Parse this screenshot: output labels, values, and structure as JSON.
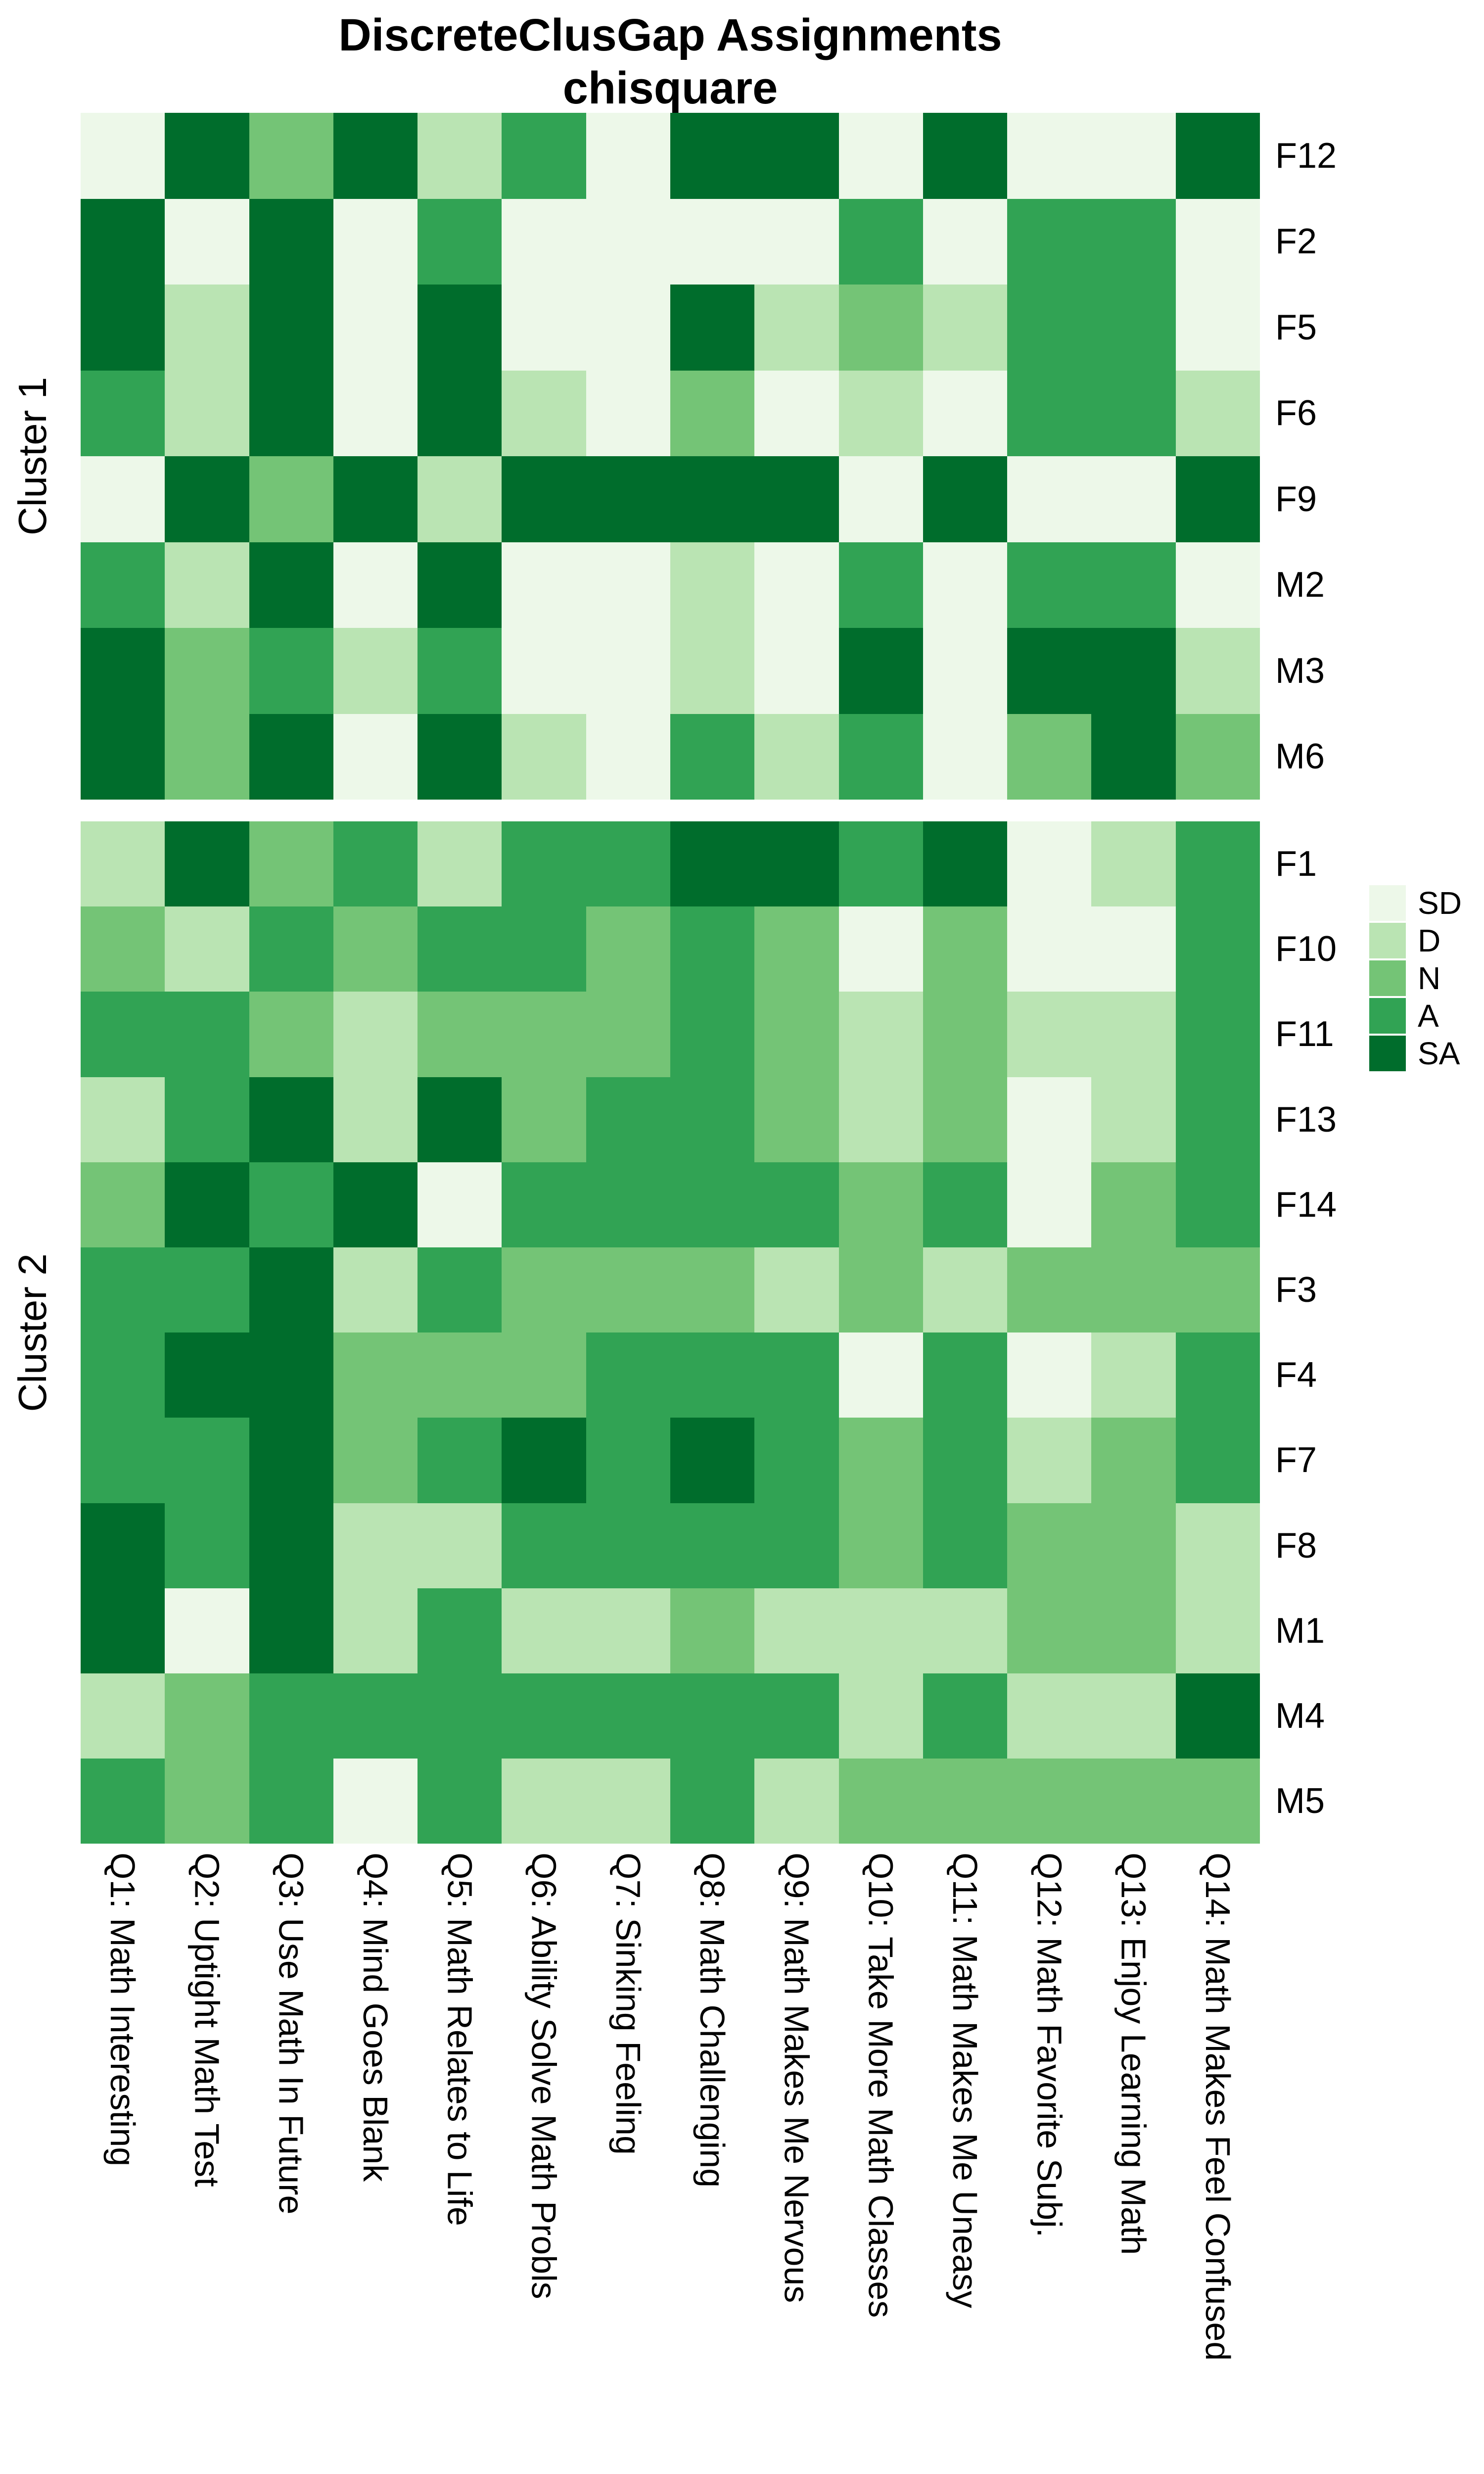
{
  "title": {
    "line1": "DiscreteClusGap Assignments",
    "line2": "chisquare"
  },
  "legend": {
    "entries": [
      {
        "label": "SD",
        "color": "#edf8e9"
      },
      {
        "label": "D",
        "color": "#bae4b3"
      },
      {
        "label": "N",
        "color": "#74c476"
      },
      {
        "label": "A",
        "color": "#31a354"
      },
      {
        "label": "SA",
        "color": "#006d2c"
      }
    ]
  },
  "chart_data": {
    "type": "heatmap",
    "title": "DiscreteClusGap Assignments",
    "subtitle": "chisquare",
    "value_scale": [
      "SD",
      "D",
      "N",
      "A",
      "SA"
    ],
    "palette": {
      "SD": "#edf8e9",
      "D": "#bae4b3",
      "N": "#74c476",
      "A": "#31a354",
      "SA": "#006d2c"
    },
    "legend_position": "right",
    "grid": "off",
    "columns": [
      "Q1: Math Interesting",
      "Q2: Uptight Math Test",
      "Q3: Use Math In Future",
      "Q4: Mind Goes Blank",
      "Q5: Math Relates to Life",
      "Q6: Ability Solve Math Probls",
      "Q7: Sinking Feeling",
      "Q8: Math Challenging",
      "Q9: Math Makes Me Nervous",
      "Q10: Take More Math Classes",
      "Q11: Math Makes Me Uneasy",
      "Q12: Math Favorite Subj.",
      "Q13: Enjoy Learning Math",
      "Q14: Math Makes Feel Confused"
    ],
    "clusters": [
      {
        "label": "Cluster 1",
        "rows": [
          {
            "label": "F12",
            "values": [
              "SD",
              "SA",
              "N",
              "SA",
              "D",
              "A",
              "SD",
              "SA",
              "SA",
              "SD",
              "SA",
              "SD",
              "SD",
              "SA"
            ]
          },
          {
            "label": "F2",
            "values": [
              "SA",
              "SD",
              "SA",
              "SD",
              "A",
              "SD",
              "SD",
              "SD",
              "SD",
              "A",
              "SD",
              "A",
              "A",
              "SD"
            ]
          },
          {
            "label": "F5",
            "values": [
              "SA",
              "D",
              "SA",
              "SD",
              "SA",
              "SD",
              "SD",
              "SA",
              "D",
              "N",
              "D",
              "A",
              "A",
              "SD"
            ]
          },
          {
            "label": "F6",
            "values": [
              "A",
              "D",
              "SA",
              "SD",
              "SA",
              "D",
              "SD",
              "N",
              "SD",
              "D",
              "SD",
              "A",
              "A",
              "D"
            ]
          },
          {
            "label": "F9",
            "values": [
              "SD",
              "SA",
              "N",
              "SA",
              "D",
              "SA",
              "SA",
              "SA",
              "SA",
              "SD",
              "SA",
              "SD",
              "SD",
              "SA"
            ]
          },
          {
            "label": "M2",
            "values": [
              "A",
              "D",
              "SA",
              "SD",
              "SA",
              "SD",
              "SD",
              "D",
              "SD",
              "A",
              "SD",
              "A",
              "A",
              "SD"
            ]
          },
          {
            "label": "M3",
            "values": [
              "SA",
              "N",
              "A",
              "D",
              "A",
              "SD",
              "SD",
              "D",
              "SD",
              "SA",
              "SD",
              "SA",
              "SA",
              "D"
            ]
          },
          {
            "label": "M6",
            "values": [
              "SA",
              "N",
              "SA",
              "SD",
              "SA",
              "D",
              "SD",
              "A",
              "D",
              "A",
              "SD",
              "N",
              "SA",
              "N"
            ]
          }
        ]
      },
      {
        "label": "Cluster 2",
        "rows": [
          {
            "label": "F1",
            "values": [
              "D",
              "SA",
              "N",
              "A",
              "D",
              "A",
              "A",
              "SA",
              "SA",
              "A",
              "SA",
              "SD",
              "D",
              "A"
            ]
          },
          {
            "label": "F10",
            "values": [
              "N",
              "D",
              "A",
              "N",
              "A",
              "A",
              "N",
              "A",
              "N",
              "SD",
              "N",
              "SD",
              "SD",
              "A"
            ]
          },
          {
            "label": "F11",
            "values": [
              "A",
              "A",
              "N",
              "D",
              "N",
              "N",
              "N",
              "A",
              "N",
              "D",
              "N",
              "D",
              "D",
              "A"
            ]
          },
          {
            "label": "F13",
            "values": [
              "D",
              "A",
              "SA",
              "D",
              "SA",
              "N",
              "A",
              "A",
              "N",
              "D",
              "N",
              "SD",
              "D",
              "A"
            ]
          },
          {
            "label": "F14",
            "values": [
              "N",
              "SA",
              "A",
              "SA",
              "SD",
              "A",
              "A",
              "A",
              "A",
              "N",
              "A",
              "SD",
              "N",
              "A"
            ]
          },
          {
            "label": "F3",
            "values": [
              "A",
              "A",
              "SA",
              "D",
              "A",
              "N",
              "N",
              "N",
              "D",
              "N",
              "D",
              "N",
              "N",
              "N"
            ]
          },
          {
            "label": "F4",
            "values": [
              "A",
              "SA",
              "SA",
              "N",
              "N",
              "N",
              "A",
              "A",
              "A",
              "SD",
              "A",
              "SD",
              "D",
              "A"
            ]
          },
          {
            "label": "F7",
            "values": [
              "A",
              "A",
              "SA",
              "N",
              "A",
              "SA",
              "A",
              "SA",
              "A",
              "N",
              "A",
              "D",
              "N",
              "A"
            ]
          },
          {
            "label": "F8",
            "values": [
              "SA",
              "A",
              "SA",
              "D",
              "D",
              "A",
              "A",
              "A",
              "A",
              "N",
              "A",
              "N",
              "N",
              "D"
            ]
          },
          {
            "label": "M1",
            "values": [
              "SA",
              "SD",
              "SA",
              "D",
              "A",
              "D",
              "D",
              "N",
              "D",
              "D",
              "D",
              "N",
              "N",
              "D"
            ]
          },
          {
            "label": "M4",
            "values": [
              "D",
              "N",
              "A",
              "A",
              "A",
              "A",
              "A",
              "A",
              "A",
              "D",
              "A",
              "D",
              "D",
              "SA"
            ]
          },
          {
            "label": "M5",
            "values": [
              "A",
              "N",
              "A",
              "SD",
              "A",
              "D",
              "D",
              "A",
              "D",
              "N",
              "N",
              "N",
              "N",
              "N"
            ]
          }
        ]
      }
    ]
  }
}
